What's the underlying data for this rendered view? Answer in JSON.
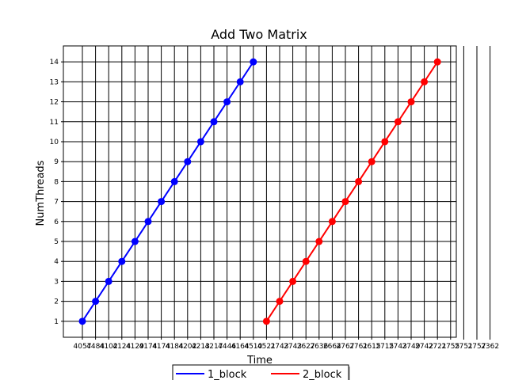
{
  "chart_data": {
    "type": "line",
    "title": "Add Two Matrix",
    "xlabel": "Time",
    "ylabel": "NumThreads",
    "grid": true,
    "legend_placement": "bottom-center",
    "x_tick_labels": [
      "4057",
      "4484",
      "4102",
      "4124",
      "4129",
      "4174",
      "4174",
      "4184",
      "4202",
      "4213",
      "4217",
      "4446",
      "4164",
      "4510",
      "4521",
      "2743",
      "2743",
      "2627",
      "2636",
      "2664",
      "2767",
      "2761",
      "2615",
      "2715",
      "2743",
      "2749",
      "2742",
      "2721",
      "2755",
      "2751",
      "2757",
      "2362"
    ],
    "y_ticks": [
      1,
      2,
      3,
      4,
      5,
      6,
      7,
      8,
      9,
      10,
      11,
      12,
      13,
      14
    ],
    "ylim": [
      0.2,
      14.8
    ],
    "series": [
      {
        "name": "1_block",
        "color": "#0000ff",
        "x_positions": [
          0,
          1,
          2,
          3,
          4,
          5,
          6,
          7,
          8,
          9,
          10,
          11,
          12,
          13
        ],
        "y": [
          1,
          2,
          3,
          4,
          5,
          6,
          7,
          8,
          9,
          10,
          11,
          12,
          13,
          14
        ]
      },
      {
        "name": "2_block",
        "color": "#ff0000",
        "x_positions": [
          14,
          15,
          16,
          17,
          18,
          19,
          20,
          21,
          22,
          23,
          24,
          25,
          26,
          27
        ],
        "y": [
          1,
          2,
          3,
          4,
          5,
          6,
          7,
          8,
          9,
          10,
          11,
          12,
          13,
          14
        ]
      }
    ]
  }
}
